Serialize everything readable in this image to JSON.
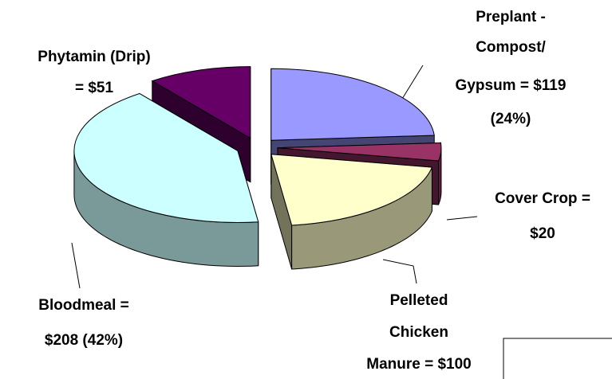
{
  "chart_data": {
    "type": "pie3d",
    "values": [
      119,
      20,
      100,
      208,
      51
    ],
    "value_labels": [
      [
        "Preplant -",
        "Compost/",
        "Gypsum = $119",
        "(24%)"
      ],
      [
        "Cover Crop =",
        "$20"
      ],
      [
        "Pelleted",
        "Chicken",
        "Manure = $100"
      ],
      [
        "Bloodmeal =",
        "$208 (42%)"
      ],
      [
        "Phytamin (Drip)",
        "= $51"
      ]
    ],
    "colors": [
      "#9999ff",
      "#993366",
      "#ffffcc",
      "#ccffff",
      "#660066"
    ]
  }
}
